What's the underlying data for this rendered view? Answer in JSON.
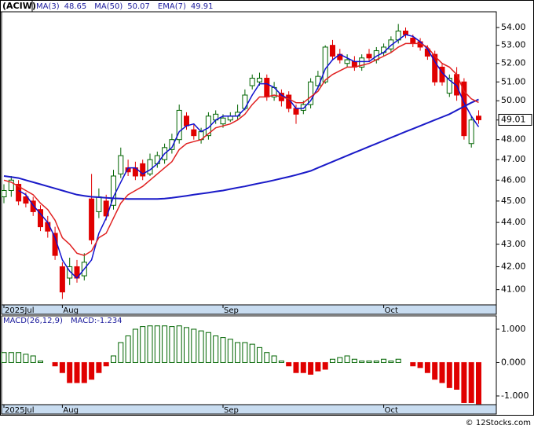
{
  "chart_data": [
    {
      "type": "candlestick",
      "title": "(ACIW)",
      "categories": [
        "2025Jul",
        null,
        null,
        null,
        null,
        null,
        null,
        null,
        "Aug",
        null,
        null,
        null,
        null,
        null,
        null,
        null,
        null,
        null,
        null,
        null,
        null,
        null,
        null,
        null,
        null,
        null,
        null,
        null,
        null,
        null,
        "Sep",
        null,
        null,
        null,
        null,
        null,
        null,
        null,
        null,
        null,
        null,
        null,
        null,
        null,
        null,
        null,
        null,
        null,
        null,
        null,
        null,
        null,
        "Oct",
        null,
        null,
        null,
        null,
        null,
        null,
        null,
        null,
        null,
        null,
        null,
        null,
        null
      ],
      "open": [
        45.2,
        45.5,
        45.8,
        45.2,
        45.0,
        44.6,
        44.0,
        43.5,
        42.0,
        41.5,
        42.0,
        41.6,
        45.1,
        44.5,
        45.0,
        44.8,
        46.3,
        46.6,
        46.6,
        46.8,
        46.3,
        46.8,
        47.0,
        47.5,
        48.0,
        49.2,
        48.5,
        48.0,
        48.2,
        49.0,
        48.8,
        49.0,
        49.2,
        49.6,
        50.8,
        51.0,
        51.2,
        50.2,
        50.4,
        50.3,
        49.6,
        49.5,
        49.8,
        50.8,
        51.0,
        53.0,
        52.5,
        52.0,
        52.1,
        51.8,
        52.5,
        52.2,
        52.6,
        52.8,
        53.3,
        53.8,
        53.4,
        53.2,
        52.8,
        52.5,
        51.8,
        50.4,
        51.4,
        51.0,
        47.8,
        49.2
      ],
      "high": [
        45.8,
        46.2,
        46.0,
        45.4,
        45.2,
        44.8,
        44.3,
        43.8,
        42.2,
        42.4,
        42.3,
        42.6,
        46.3,
        45.6,
        45.3,
        46.5,
        47.6,
        47.0,
        46.9,
        47.0,
        47.3,
        47.4,
        47.8,
        48.3,
        49.8,
        49.4,
        48.8,
        48.6,
        49.4,
        49.5,
        49.3,
        49.4,
        49.8,
        50.6,
        51.4,
        51.5,
        51.4,
        51.0,
        50.6,
        50.5,
        49.8,
        50.0,
        51.2,
        51.6,
        53.0,
        53.3,
        52.8,
        52.5,
        52.4,
        52.5,
        52.8,
        52.9,
        53.1,
        53.5,
        54.2,
        54.0,
        53.6,
        53.4,
        53.0,
        52.7,
        52.0,
        51.4,
        51.8,
        51.2,
        49.2,
        49.5
      ],
      "low": [
        44.9,
        45.2,
        44.8,
        44.7,
        44.3,
        43.6,
        43.3,
        42.3,
        40.6,
        41.2,
        41.3,
        41.4,
        43.0,
        44.2,
        44.1,
        44.6,
        46.1,
        46.2,
        46.0,
        46.0,
        46.2,
        46.6,
        46.8,
        47.3,
        47.8,
        48.5,
        48.0,
        47.8,
        48.0,
        48.8,
        48.6,
        48.9,
        49.0,
        49.5,
        50.6,
        50.8,
        50.0,
        50.0,
        49.7,
        49.4,
        48.8,
        49.3,
        49.6,
        50.6,
        50.9,
        52.2,
        52.0,
        51.8,
        51.6,
        51.6,
        52.1,
        52.0,
        52.4,
        52.6,
        53.1,
        53.4,
        52.9,
        52.7,
        52.2,
        50.8,
        50.8,
        50.2,
        50.0,
        48.0,
        47.6,
        48.8
      ],
      "close": [
        45.5,
        46.0,
        45.0,
        44.9,
        44.5,
        43.8,
        43.6,
        42.5,
        40.9,
        42.0,
        41.5,
        42.2,
        43.2,
        45.2,
        44.3,
        46.2,
        47.2,
        46.4,
        46.2,
        46.2,
        47.0,
        47.2,
        47.6,
        48.0,
        49.5,
        48.7,
        48.2,
        48.4,
        49.2,
        49.3,
        49.1,
        49.2,
        49.4,
        50.3,
        51.2,
        51.2,
        50.2,
        50.7,
        50.0,
        49.6,
        49.3,
        49.8,
        51.0,
        51.3,
        52.9,
        52.4,
        52.2,
        52.2,
        51.8,
        52.3,
        52.3,
        52.7,
        52.9,
        53.3,
        53.8,
        53.6,
        53.1,
        52.9,
        52.4,
        51.0,
        51.0,
        51.2,
        50.3,
        48.2,
        49.0,
        49.01
      ],
      "up_color": "#006400",
      "down_color": "#e00000",
      "series": [
        {
          "name": "MA(3)",
          "color": "#1010d0",
          "width": 1.5,
          "values": [
            null,
            null,
            45.5,
            45.3,
            44.8,
            44.4,
            44.0,
            43.3,
            42.3,
            41.8,
            41.5,
            41.9,
            42.3,
            43.5,
            44.2,
            45.2,
            45.9,
            46.6,
            46.6,
            46.3,
            46.5,
            46.8,
            47.3,
            47.6,
            48.4,
            48.7,
            48.8,
            48.4,
            48.6,
            49.0,
            49.2,
            49.2,
            49.2,
            49.6,
            50.3,
            50.9,
            50.9,
            50.7,
            50.3,
            50.1,
            49.6,
            49.6,
            50.0,
            50.7,
            51.7,
            52.2,
            52.5,
            52.3,
            52.1,
            52.1,
            52.1,
            52.4,
            52.6,
            53.0,
            53.3,
            53.6,
            53.5,
            53.2,
            52.8,
            52.1,
            51.5,
            51.1,
            50.8,
            49.9,
            49.2,
            48.65
          ]
        },
        {
          "name": "MA(50)",
          "color": "#1a1ac8",
          "width": 2,
          "values": [
            46.2,
            46.15,
            46.1,
            46.0,
            45.9,
            45.8,
            45.7,
            45.6,
            45.5,
            45.4,
            45.3,
            45.25,
            45.2,
            45.18,
            45.15,
            45.13,
            45.12,
            45.1,
            45.1,
            45.1,
            45.1,
            45.1,
            45.12,
            45.15,
            45.2,
            45.25,
            45.3,
            45.35,
            45.4,
            45.45,
            45.5,
            45.57,
            45.64,
            45.7,
            45.78,
            45.85,
            45.92,
            46.0,
            46.08,
            46.16,
            46.25,
            46.35,
            46.45,
            46.6,
            46.75,
            46.9,
            47.05,
            47.2,
            47.35,
            47.5,
            47.65,
            47.8,
            47.95,
            48.1,
            48.25,
            48.4,
            48.55,
            48.7,
            48.85,
            49.0,
            49.15,
            49.3,
            49.5,
            49.7,
            49.9,
            50.07
          ]
        },
        {
          "name": "EMA(7)",
          "color": "#e02020",
          "width": 1.5,
          "values": [
            46.0,
            45.9,
            45.7,
            45.5,
            45.3,
            44.9,
            44.6,
            44.1,
            43.3,
            43.0,
            42.6,
            42.5,
            42.7,
            43.3,
            43.5,
            44.2,
            44.9,
            45.3,
            45.5,
            45.7,
            46.0,
            46.3,
            46.6,
            46.9,
            47.5,
            47.8,
            47.9,
            48.0,
            48.3,
            48.6,
            48.7,
            48.8,
            49.0,
            49.3,
            49.8,
            50.2,
            50.2,
            50.3,
            50.2,
            50.1,
            49.9,
            49.9,
            50.2,
            50.5,
            51.1,
            51.4,
            51.6,
            51.8,
            51.8,
            51.9,
            52.0,
            52.2,
            52.4,
            52.6,
            52.9,
            53.1,
            53.1,
            53.1,
            52.9,
            52.4,
            52.0,
            51.8,
            51.4,
            50.5,
            50.1,
            49.91
          ]
        }
      ],
      "log_scale": true,
      "ylim": [
        40.35,
        54.9
      ],
      "yticks": [
        {
          "value": 41,
          "label": "41.00"
        },
        {
          "value": 42,
          "label": "42.00"
        },
        {
          "value": 43,
          "label": "43.00"
        },
        {
          "value": 44,
          "label": "44.00"
        },
        {
          "value": 45,
          "label": "45.00"
        },
        {
          "value": 46,
          "label": "46.00"
        },
        {
          "value": 47,
          "label": "47.00"
        },
        {
          "value": 48,
          "label": "48.00"
        },
        {
          "value": 49,
          "label": "49.00"
        },
        {
          "value": 50,
          "label": "50.00"
        },
        {
          "value": 51,
          "label": "51.00"
        },
        {
          "value": 52,
          "label": "52.00"
        },
        {
          "value": 53,
          "label": "53.00"
        },
        {
          "value": 54,
          "label": "54.00"
        }
      ],
      "grid": false
    },
    {
      "type": "bar",
      "title": "MACD(26,12,9)",
      "legend_label": "MACD:",
      "categories": [
        "2025Jul",
        null,
        null,
        null,
        null,
        null,
        null,
        null,
        "Aug",
        null,
        null,
        null,
        null,
        null,
        null,
        null,
        null,
        null,
        null,
        null,
        null,
        null,
        null,
        null,
        null,
        null,
        null,
        null,
        null,
        null,
        "Sep",
        null,
        null,
        null,
        null,
        null,
        null,
        null,
        null,
        null,
        null,
        null,
        null,
        null,
        null,
        null,
        null,
        null,
        null,
        null,
        null,
        null,
        "Oct",
        null,
        null,
        null,
        null,
        null,
        null,
        null,
        null,
        null,
        null,
        null,
        null,
        null
      ],
      "values": [
        0.3,
        0.3,
        0.3,
        0.25,
        0.2,
        0.05,
        0.0,
        -0.1,
        -0.3,
        -0.6,
        -0.6,
        -0.6,
        -0.5,
        -0.3,
        -0.1,
        0.2,
        0.6,
        0.8,
        1.0,
        1.08,
        1.1,
        1.1,
        1.1,
        1.08,
        1.1,
        1.05,
        1.0,
        0.95,
        0.9,
        0.8,
        0.75,
        0.7,
        0.6,
        0.6,
        0.55,
        0.45,
        0.3,
        0.2,
        0.05,
        -0.1,
        -0.3,
        -0.3,
        -0.35,
        -0.25,
        -0.2,
        0.1,
        0.15,
        0.2,
        0.1,
        0.05,
        0.05,
        0.05,
        0.1,
        0.05,
        0.1,
        0.0,
        -0.1,
        -0.15,
        -0.3,
        -0.5,
        -0.6,
        -0.75,
        -0.8,
        -1.2,
        -1.2,
        -1.234
      ],
      "up_color": "#006400",
      "down_color": "#e00000",
      "ylim": [
        -1.26,
        1.4
      ],
      "yticks": [
        {
          "value": -1,
          "label": "-1.000"
        },
        {
          "value": 0,
          "label": "0.000"
        },
        {
          "value": 1,
          "label": "1.000"
        }
      ],
      "grid": false
    }
  ],
  "footer": "© 12Stocks.com"
}
